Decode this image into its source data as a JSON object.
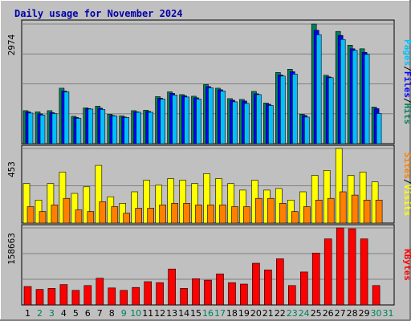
{
  "title": "Daily usage for November 2024",
  "colors": {
    "background": "#c0c0c0",
    "grid": "#808080",
    "hits": "#00805c",
    "files": "#0000ff",
    "pages": "#00c0ff",
    "visits": "#ffff00",
    "sites": "#ff8000",
    "kbytes": "#ff0000",
    "weekday": "#000000",
    "weekend": "#00805c",
    "title": "#0000aa"
  },
  "chart_data": [
    {
      "type": "bar",
      "title": "Daily usage for November 2024",
      "ylabel": "Pages / Files / Hits",
      "ymax_label": "2974",
      "ylim": [
        0,
        2974
      ],
      "categories": [
        "1",
        "2",
        "3",
        "4",
        "5",
        "6",
        "7",
        "8",
        "9",
        "10",
        "11",
        "12",
        "13",
        "14",
        "15",
        "16",
        "17",
        "18",
        "19",
        "20",
        "21",
        "22",
        "23",
        "24",
        "25",
        "26",
        "27",
        "28",
        "29",
        "30",
        "31"
      ],
      "series": [
        {
          "name": "Hits",
          "values": [
            820,
            790,
            820,
            1380,
            680,
            890,
            930,
            730,
            690,
            820,
            830,
            1170,
            1290,
            1220,
            1180,
            1470,
            1380,
            1120,
            1100,
            1300,
            1010,
            1770,
            1850,
            730,
            2980,
            1700,
            2790,
            2450,
            2360,
            910,
            null
          ]
        },
        {
          "name": "Files",
          "values": [
            790,
            740,
            770,
            1310,
            650,
            870,
            880,
            700,
            660,
            790,
            800,
            1130,
            1250,
            1190,
            1140,
            1420,
            1340,
            1080,
            1060,
            1240,
            980,
            1710,
            1790,
            700,
            2820,
            1660,
            2690,
            2360,
            2270,
            870,
            null
          ]
        },
        {
          "name": "Pages",
          "values": [
            760,
            710,
            750,
            1290,
            630,
            860,
            850,
            690,
            650,
            780,
            780,
            1110,
            1210,
            1160,
            1110,
            1390,
            1310,
            1040,
            1000,
            1220,
            950,
            1680,
            1730,
            660,
            2710,
            1640,
            2590,
            2320,
            2220,
            750,
            null
          ]
        }
      ]
    },
    {
      "type": "bar",
      "ylabel": "Sites / Visits",
      "ymax_label": "453",
      "ylim": [
        0,
        453
      ],
      "categories": [
        "1",
        "2",
        "3",
        "4",
        "5",
        "6",
        "7",
        "8",
        "9",
        "10",
        "11",
        "12",
        "13",
        "14",
        "15",
        "16",
        "17",
        "18",
        "19",
        "20",
        "21",
        "22",
        "23",
        "24",
        "25",
        "26",
        "27",
        "28",
        "29",
        "30",
        "31"
      ],
      "series": [
        {
          "name": "Visits",
          "values": [
            240,
            140,
            240,
            310,
            180,
            220,
            350,
            160,
            120,
            190,
            260,
            230,
            270,
            260,
            240,
            300,
            270,
            240,
            200,
            260,
            200,
            210,
            140,
            190,
            290,
            320,
            460,
            290,
            310,
            250,
            null
          ]
        },
        {
          "name": "Sites",
          "values": [
            100,
            70,
            110,
            150,
            80,
            70,
            130,
            100,
            60,
            90,
            90,
            110,
            120,
            120,
            110,
            110,
            110,
            100,
            100,
            150,
            150,
            120,
            70,
            100,
            140,
            150,
            190,
            170,
            140,
            140,
            null
          ]
        }
      ]
    },
    {
      "type": "bar",
      "ylabel": "KBytes",
      "ymax_label": "158663",
      "ylim": [
        0,
        158663
      ],
      "categories": [
        "1",
        "2",
        "3",
        "4",
        "5",
        "6",
        "7",
        "8",
        "9",
        "10",
        "11",
        "12",
        "13",
        "14",
        "15",
        "16",
        "17",
        "18",
        "19",
        "20",
        "21",
        "22",
        "23",
        "24",
        "25",
        "26",
        "27",
        "28",
        "29",
        "30",
        "31"
      ],
      "series": [
        {
          "name": "KBytes",
          "values": [
            38000,
            32000,
            34000,
            42000,
            30000,
            40000,
            55000,
            35000,
            30000,
            36000,
            48000,
            46000,
            74000,
            34000,
            54000,
            51000,
            64000,
            46000,
            43000,
            86000,
            72000,
            95000,
            40000,
            68000,
            107000,
            136000,
            163000,
            157000,
            136000,
            40000,
            null
          ]
        }
      ]
    }
  ]
}
